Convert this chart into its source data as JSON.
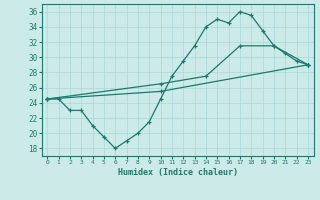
{
  "xlabel": "Humidex (Indice chaleur)",
  "bg_color": "#cceae7",
  "line_color": "#1a7a6e",
  "grid_color": "#a8d8d8",
  "xlim": [
    -0.5,
    23.5
  ],
  "ylim": [
    17,
    37
  ],
  "xticks": [
    0,
    1,
    2,
    3,
    4,
    5,
    6,
    7,
    8,
    9,
    10,
    11,
    12,
    13,
    14,
    15,
    16,
    17,
    18,
    19,
    20,
    21,
    22,
    23
  ],
  "yticks": [
    18,
    20,
    22,
    24,
    26,
    28,
    30,
    32,
    34,
    36
  ],
  "line1_x": [
    0,
    1,
    2,
    3,
    4,
    5,
    6,
    7,
    8,
    9,
    10,
    11,
    12,
    13,
    14,
    15,
    16,
    17,
    18,
    19,
    20,
    21,
    22,
    23
  ],
  "line1_y": [
    24.5,
    24.5,
    23,
    23,
    21,
    19.5,
    18,
    19,
    20,
    21.5,
    24.5,
    27.5,
    29.5,
    31.5,
    34,
    35,
    34.5,
    36,
    35.5,
    33.5,
    31.5,
    30.5,
    29.5,
    29
  ],
  "line2_x": [
    0,
    10,
    23
  ],
  "line2_y": [
    24.5,
    25.5,
    29
  ],
  "line3_x": [
    0,
    10,
    14,
    17,
    20,
    23
  ],
  "line3_y": [
    24.5,
    26.5,
    27.5,
    31.5,
    31.5,
    29
  ]
}
